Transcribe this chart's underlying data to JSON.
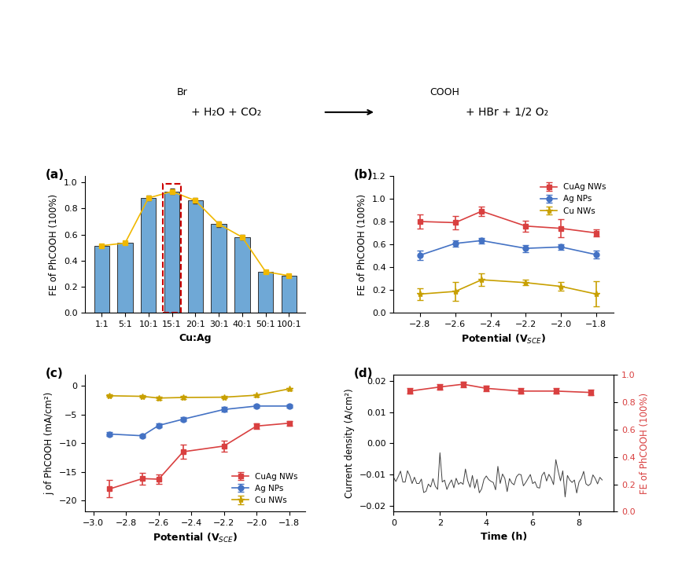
{
  "panel_a": {
    "categories": [
      "1:1",
      "5:1",
      "10:1",
      "15:1",
      "20:1",
      "30:1",
      "40:1",
      "50:1",
      "100:1"
    ],
    "values": [
      0.515,
      0.535,
      0.88,
      0.93,
      0.86,
      0.68,
      0.58,
      0.315,
      0.285
    ],
    "errors": [
      0.01,
      0.01,
      0.02,
      0.02,
      0.02,
      0.02,
      0.02,
      0.01,
      0.01
    ],
    "bar_color": "#6fa8d6",
    "line_color": "#f0b800",
    "ylabel": "FE of PhCOOH (100%)",
    "xlabel": "Cu:Ag",
    "ylim": [
      0,
      1.05
    ],
    "highlight_indices": [
      3,
      4
    ],
    "highlight_color": "#cc0000"
  },
  "panel_b": {
    "potentials": [
      -2.8,
      -2.6,
      -2.45,
      -2.2,
      -2.0,
      -1.8
    ],
    "cuag_values": [
      0.8,
      0.79,
      0.89,
      0.76,
      0.74,
      0.7
    ],
    "cuag_errors": [
      0.06,
      0.06,
      0.04,
      0.05,
      0.08,
      0.03
    ],
    "ag_values": [
      0.505,
      0.608,
      0.633,
      0.565,
      0.577,
      0.51
    ],
    "ag_errors": [
      0.04,
      0.03,
      0.025,
      0.03,
      0.025,
      0.035
    ],
    "cu_values": [
      0.165,
      0.188,
      0.29,
      0.265,
      0.232,
      0.165
    ],
    "cu_errors": [
      0.05,
      0.085,
      0.055,
      0.025,
      0.04,
      0.11
    ],
    "cuag_color": "#d94040",
    "ag_color": "#4472c4",
    "cu_color": "#c8a000",
    "ylabel": "FE of PhCOOH (100%)",
    "xlabel": "Potential (V$_{SCE}$)",
    "ylim": [
      0.0,
      1.2
    ],
    "yticks": [
      0.0,
      0.2,
      0.4,
      0.6,
      0.8,
      1.0,
      1.2
    ]
  },
  "panel_c": {
    "potentials": [
      -2.9,
      -2.7,
      -2.6,
      -2.45,
      -2.2,
      -2.0,
      -1.8
    ],
    "cuag_values": [
      -18.0,
      -16.2,
      -16.3,
      -11.5,
      -10.5,
      -7.0,
      -6.5
    ],
    "cuag_errors": [
      1.5,
      1.0,
      0.8,
      1.2,
      1.0,
      0.5,
      0.4
    ],
    "ag_values": [
      -8.4,
      -8.7,
      -6.9,
      -5.8,
      -4.1,
      -3.5,
      -3.5
    ],
    "ag_errors": [
      0.3,
      0.3,
      0.3,
      0.3,
      0.4,
      0.3,
      0.3
    ],
    "cu_values": [
      -1.7,
      -1.8,
      -2.1,
      -2.0,
      -1.95,
      -1.6,
      -0.5
    ],
    "cu_errors": [
      0.2,
      0.2,
      0.25,
      0.25,
      0.25,
      0.2,
      0.2
    ],
    "cuag_color": "#d94040",
    "ag_color": "#4472c4",
    "cu_color": "#c8a000",
    "ylabel": "j of PhCOOH (mA/cm²)",
    "xlabel": "Potential (V$_{SCE}$)",
    "ylim": [
      -22,
      2
    ],
    "yticks": [
      0,
      -5,
      -10,
      -15,
      -20
    ],
    "xlim": [
      -3.05,
      -1.7
    ]
  },
  "panel_d": {
    "time_current": [
      0.0,
      0.1,
      0.2,
      0.3,
      0.4,
      0.5,
      0.6,
      0.7,
      0.8,
      0.9,
      1.0,
      1.1,
      1.2,
      1.3,
      1.4,
      1.5,
      1.6,
      1.7,
      1.8,
      1.9,
      2.0,
      2.1,
      2.2,
      2.3,
      2.4,
      2.5,
      2.6,
      2.7,
      2.8,
      2.9,
      3.0,
      3.1,
      3.2,
      3.3,
      3.4,
      3.5,
      3.6,
      3.7,
      3.8,
      3.9,
      4.0,
      4.1,
      4.2,
      4.3,
      4.4,
      4.5,
      4.6,
      4.7,
      4.8,
      4.9,
      5.0,
      5.1,
      5.2,
      5.3,
      5.4,
      5.5,
      5.6,
      5.7,
      5.8,
      5.9,
      6.0,
      6.1,
      6.2,
      6.3,
      6.4,
      6.5,
      6.6,
      6.7,
      6.8,
      6.9,
      7.0,
      7.1,
      7.2,
      7.3,
      7.4,
      7.5,
      7.6,
      7.7,
      7.8,
      7.9,
      8.0,
      8.1,
      8.2,
      8.3,
      8.4,
      8.5,
      8.6,
      8.7,
      8.8,
      8.9,
      9.0
    ],
    "current_density": [
      -0.012,
      -0.011,
      -0.012,
      -0.013,
      -0.011,
      -0.012,
      -0.013,
      -0.01,
      -0.011,
      -0.012,
      -0.011,
      -0.01,
      -0.012,
      -0.011,
      -0.013,
      -0.012,
      -0.011,
      -0.012,
      -0.01,
      -0.011,
      -0.006,
      -0.012,
      -0.013,
      -0.011,
      -0.012,
      -0.011,
      -0.013,
      -0.012,
      -0.014,
      -0.013,
      -0.015,
      -0.013,
      -0.012,
      -0.013,
      -0.011,
      -0.012,
      -0.013,
      -0.012,
      -0.011,
      -0.012,
      -0.013,
      -0.012,
      -0.011,
      -0.012,
      -0.013,
      -0.006,
      -0.012,
      -0.013,
      -0.011,
      -0.012,
      -0.013,
      -0.014,
      -0.013,
      -0.012,
      -0.013,
      -0.012,
      -0.011,
      -0.012,
      -0.013,
      -0.012,
      -0.013,
      -0.012,
      -0.011,
      -0.012,
      -0.013,
      -0.012,
      -0.011,
      -0.012,
      -0.013,
      -0.012,
      -0.006,
      -0.013,
      -0.012,
      -0.013,
      -0.012,
      -0.013,
      -0.012,
      -0.013,
      -0.012,
      -0.013,
      -0.014,
      -0.013,
      -0.012,
      -0.013,
      -0.014,
      -0.013,
      -0.012,
      -0.013,
      -0.012,
      -0.013,
      -0.012
    ],
    "fe_time": [
      0.7,
      2.0,
      3.0,
      4.0,
      5.5,
      7.0,
      8.5
    ],
    "fe_values": [
      0.88,
      0.91,
      0.93,
      0.9,
      0.88,
      0.88,
      0.87
    ],
    "fe_errors": [
      0.02,
      0.02,
      0.02,
      0.02,
      0.02,
      0.02,
      0.02
    ],
    "current_color": "#404040",
    "fe_color": "#d94040",
    "ylabel_left": "Current density (A/cm²)",
    "ylabel_right": "FE of PhCOOH (100%)",
    "xlabel": "Time (h)",
    "ylim_left": [
      -0.022,
      0.022
    ],
    "ylim_right": [
      0.0,
      1.0
    ],
    "yticks_left": [
      -0.02,
      -0.01,
      0.0,
      0.01,
      0.02
    ],
    "yticks_right": [
      0.0,
      0.2,
      0.4,
      0.6,
      0.8,
      1.0
    ]
  },
  "top_reaction": {
    "reactant": "PhBr + H₂O + CO₂",
    "product": "PhCOOH + HBr + 1/2 O₂",
    "arrow": "→"
  },
  "background_color": "#ffffff"
}
